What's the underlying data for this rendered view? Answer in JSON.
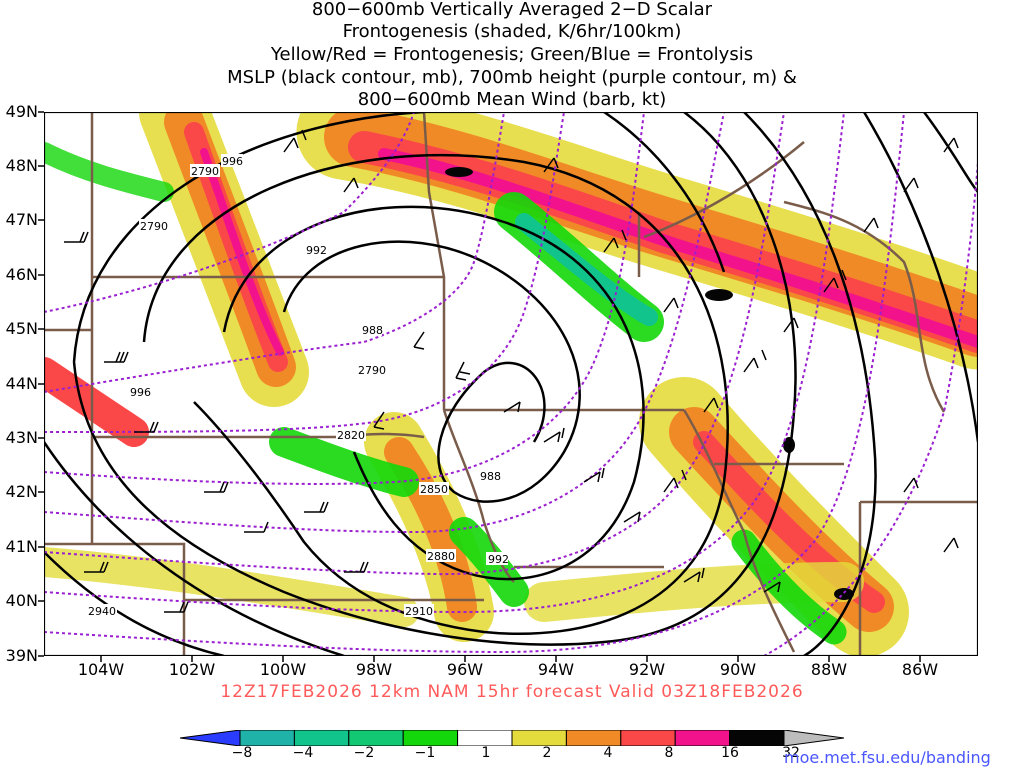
{
  "title_lines": [
    "800−600mb Vertically Averaged 2−D Scalar",
    "Frontogenesis (shaded, K/6hr/100km)",
    "Yellow/Red = Frontogenesis;  Green/Blue = Frontolysis",
    "MSLP (black contour, mb), 700mb height (purple contour, m) &",
    "800−600mb Mean Wind (barb, kt)"
  ],
  "lat_labels": [
    "49N",
    "48N",
    "47N",
    "46N",
    "45N",
    "44N",
    "43N",
    "42N",
    "41N",
    "40N",
    "39N"
  ],
  "lon_labels": [
    "104W",
    "102W",
    "100W",
    "98W",
    "96W",
    "94W",
    "92W",
    "90W",
    "88W",
    "86W"
  ],
  "valid_line": "12Z17FEB2026 12km NAM 15hr forecast Valid 03Z18FEB2026",
  "credit": "moe.met.fsu.edu/banding",
  "colorbar": {
    "labels": [
      "−8",
      "−4",
      "−2",
      "−1",
      "1",
      "2",
      "4",
      "8",
      "16",
      "32"
    ],
    "colors": [
      "#2a3cff",
      "#1fb2a8",
      "#11c48c",
      "#12c873",
      "#13d70a",
      "#ffffff",
      "#e4dc3c",
      "#f08a26",
      "#fa4848",
      "#f2138c",
      "#050505",
      "#bdbdbd"
    ]
  },
  "contour_labels": {
    "mslp": [
      "996",
      "992",
      "988",
      "996",
      "988",
      "992"
    ],
    "height": [
      "2790",
      "2790",
      "2790",
      "2820",
      "2850",
      "2880",
      "2910",
      "2940"
    ]
  },
  "colors": {
    "mslp": "#000000",
    "height": "#9b1fd0",
    "borders": "#7a5c4a",
    "valid_text": "#ff5a5a",
    "credit_text": "#4a56ff"
  }
}
